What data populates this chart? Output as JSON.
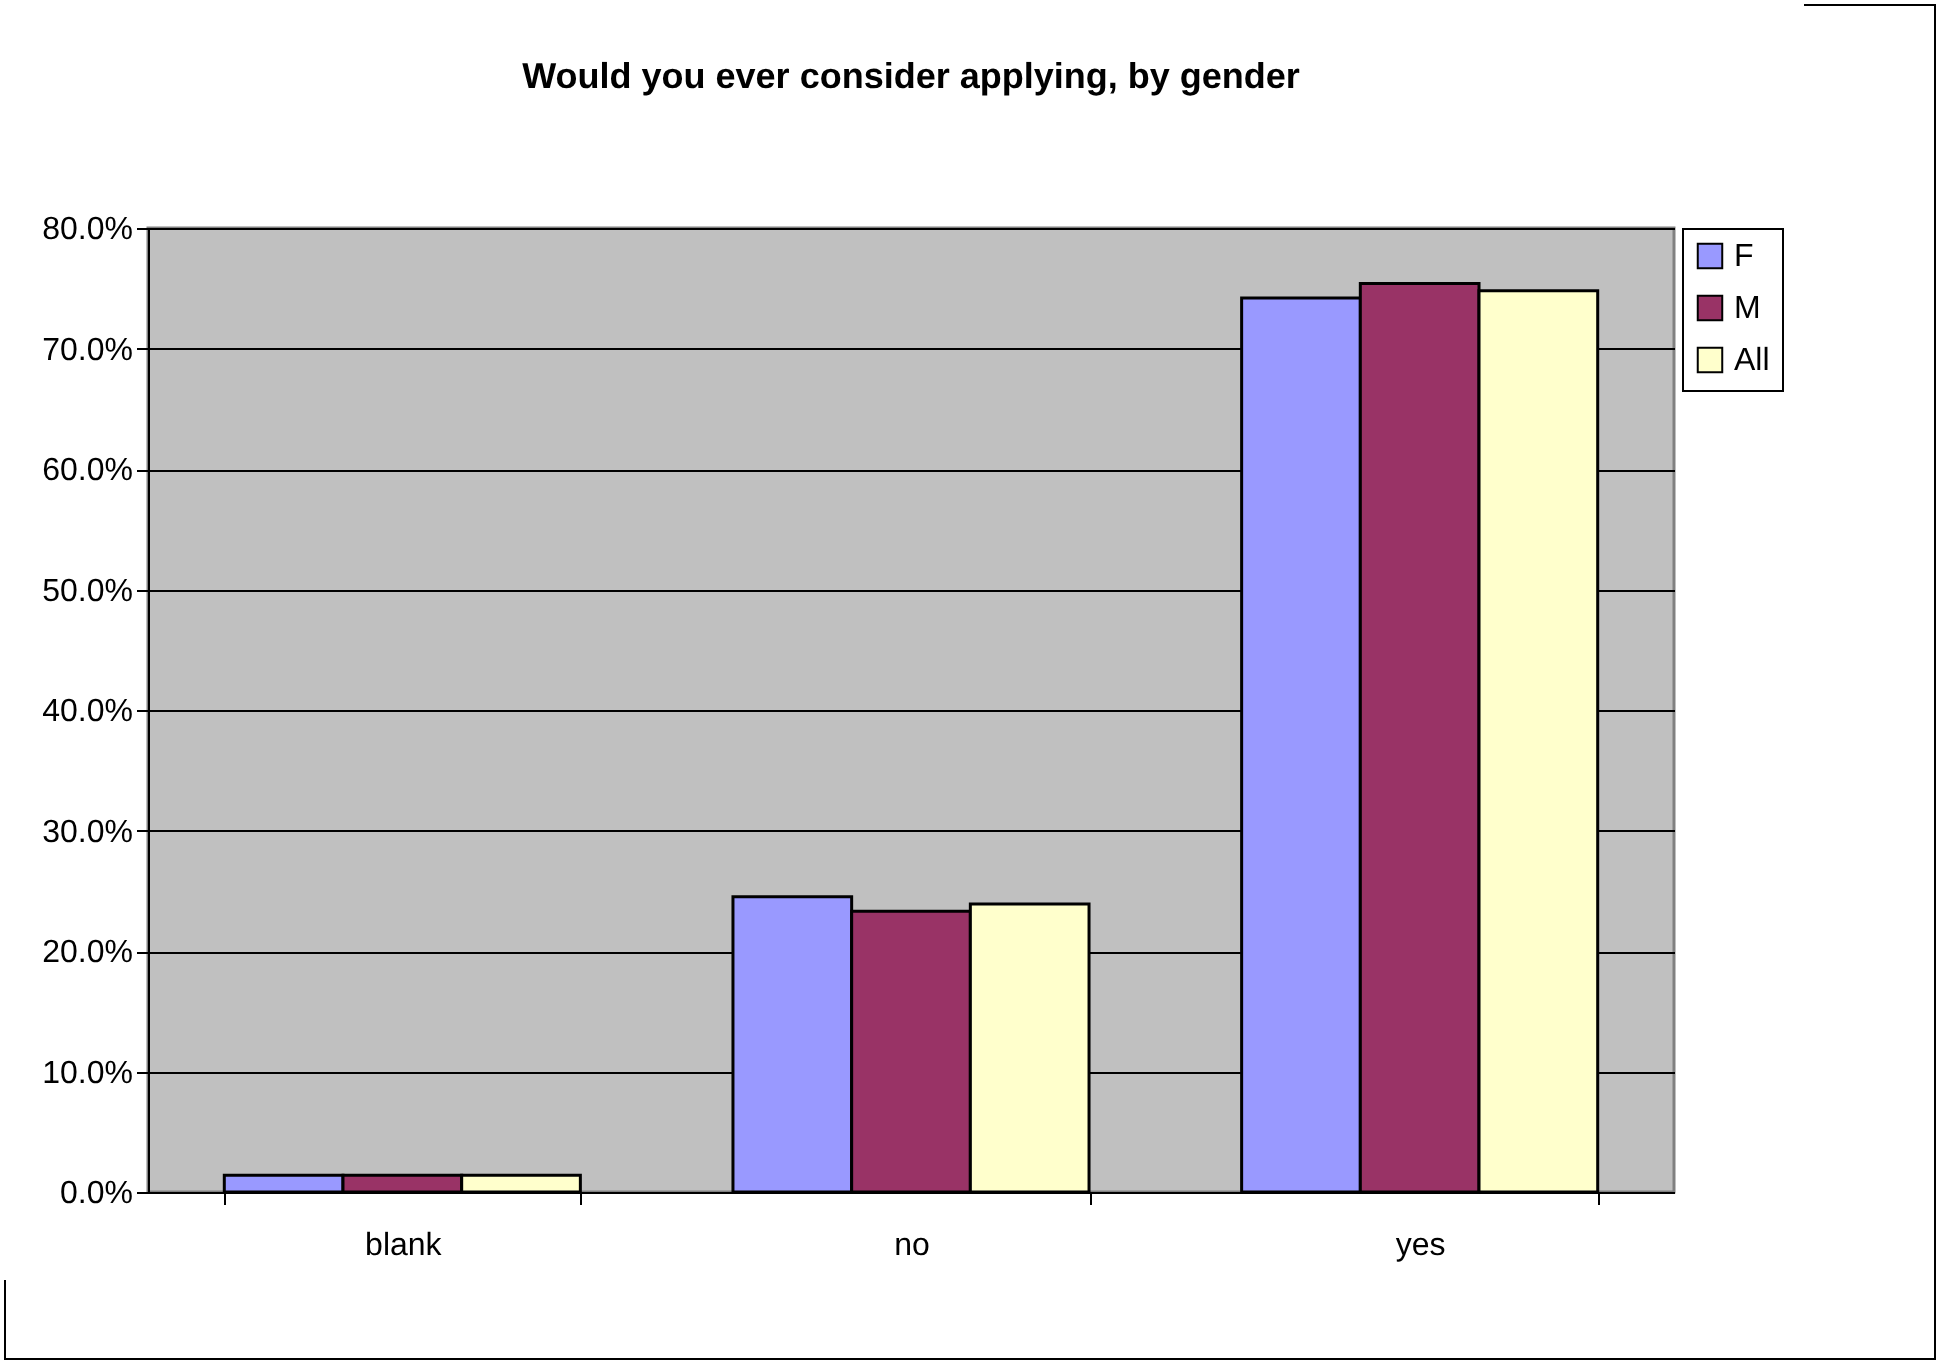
{
  "chart_data": {
    "type": "bar",
    "title": "Would you ever consider applying, by gender",
    "categories": [
      "blank",
      "no",
      "yes"
    ],
    "series": [
      {
        "name": "F",
        "color": "#9999ff",
        "values": [
          1.4,
          24.5,
          74.2
        ]
      },
      {
        "name": "M",
        "color": "#993366",
        "values": [
          1.4,
          23.3,
          75.4
        ]
      },
      {
        "name": "All",
        "color": "#ffffcc",
        "values": [
          1.4,
          23.9,
          74.8
        ]
      }
    ],
    "ylim": [
      0,
      80
    ],
    "yticks": [
      {
        "value": 0,
        "label": "0.0%"
      },
      {
        "value": 10,
        "label": "10.0%"
      },
      {
        "value": 20,
        "label": "20.0%"
      },
      {
        "value": 30,
        "label": "30.0%"
      },
      {
        "value": 40,
        "label": "40.0%"
      },
      {
        "value": 50,
        "label": "50.0%"
      },
      {
        "value": 60,
        "label": "60.0%"
      },
      {
        "value": 70,
        "label": "70.0%"
      },
      {
        "value": 80,
        "label": "80.0%"
      }
    ],
    "grid": "y",
    "legend": "right"
  }
}
